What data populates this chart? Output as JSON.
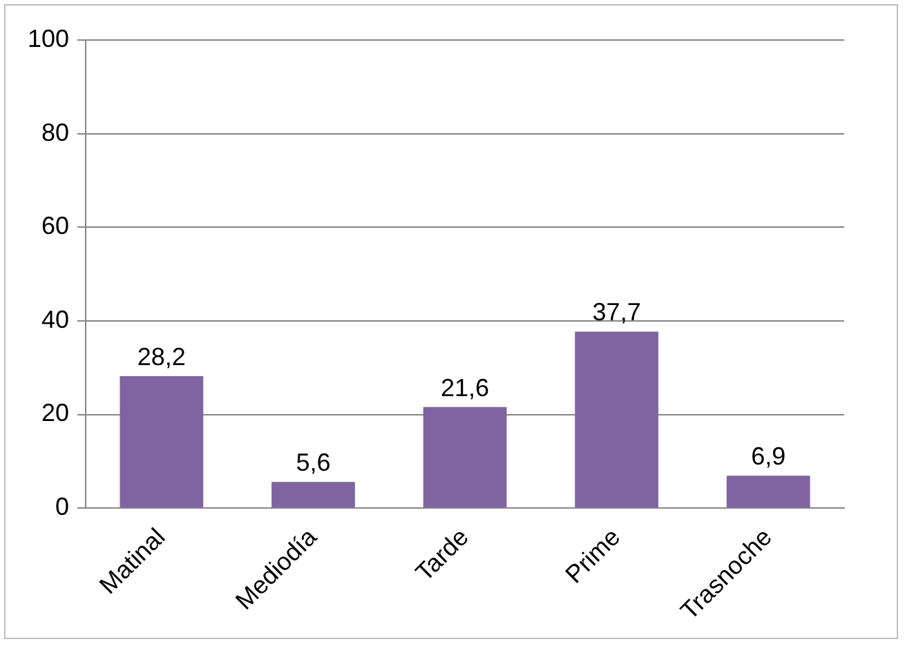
{
  "chart_data": {
    "type": "bar",
    "categories": [
      "Matinal",
      "Mediodía",
      "Tarde",
      "Prime",
      "Trasnoche"
    ],
    "values": [
      28.2,
      5.6,
      21.6,
      37.7,
      6.9
    ],
    "value_labels": [
      "28,2",
      "5,6",
      "21,6",
      "37,7",
      "6,9"
    ],
    "color": "#8064a2",
    "ylim": [
      0,
      100
    ],
    "yticks": [
      0,
      20,
      40,
      60,
      80,
      100
    ],
    "grid": "y",
    "legend": false
  }
}
